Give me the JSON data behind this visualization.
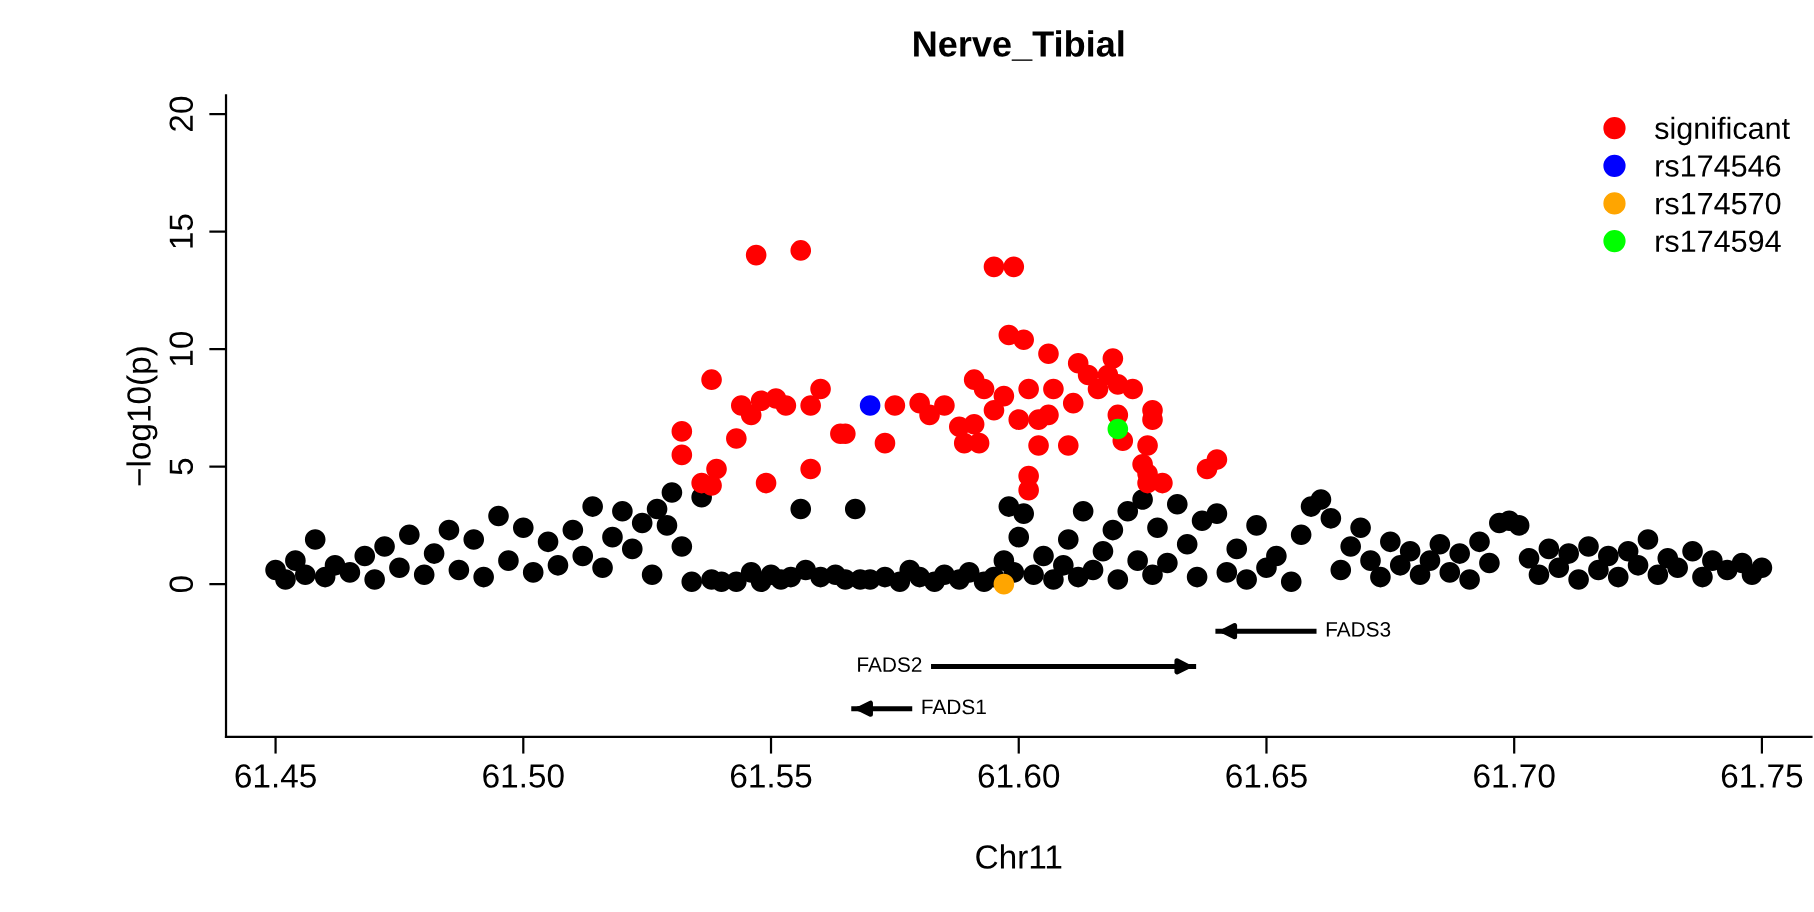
{
  "chart_data": {
    "type": "scatter",
    "title": "Nerve_Tibial",
    "xlabel": "Chr11",
    "ylabel": "−log10(p)",
    "xlim": [
      61.44,
      61.76
    ],
    "xticks": [
      {
        "value": 61.45,
        "label": "61.45"
      },
      {
        "value": 61.5,
        "label": "61.50"
      },
      {
        "value": 61.55,
        "label": "61.55"
      },
      {
        "value": 61.6,
        "label": "61.60"
      },
      {
        "value": 61.65,
        "label": "61.65"
      },
      {
        "value": 61.7,
        "label": "61.70"
      },
      {
        "value": 61.75,
        "label": "61.75"
      }
    ],
    "ylim": [
      -6.5,
      20.8
    ],
    "yticks": [
      0,
      5,
      10,
      15,
      20
    ],
    "grid": false,
    "legend": "top right",
    "marker": "circle",
    "series": [
      {
        "color": "#000000",
        "x": [
          61.45,
          61.452,
          61.454,
          61.456,
          61.458,
          61.46,
          61.462,
          61.465,
          61.468,
          61.47,
          61.472,
          61.475,
          61.477,
          61.48,
          61.482,
          61.485,
          61.487,
          61.49,
          61.492,
          61.495,
          61.497,
          61.5,
          61.502,
          61.505,
          61.507,
          61.51,
          61.512,
          61.514,
          61.516,
          61.518,
          61.52,
          61.522,
          61.524,
          61.526,
          61.527,
          61.529,
          61.53,
          61.532,
          61.534,
          61.536,
          61.538,
          61.54,
          61.543,
          61.546,
          61.548,
          61.55,
          61.552,
          61.554,
          61.556,
          61.557,
          61.56,
          61.563,
          61.565,
          61.567,
          61.568,
          61.57,
          61.573,
          61.576,
          61.578,
          61.58,
          61.583,
          61.585,
          61.588,
          61.59,
          61.593,
          61.595,
          61.597,
          61.598,
          61.599,
          61.6,
          61.601,
          61.603,
          61.605,
          61.607,
          61.609,
          61.61,
          61.612,
          61.613,
          61.615,
          61.617,
          61.619,
          61.62,
          61.622,
          61.624,
          61.625,
          61.627,
          61.628,
          61.63,
          61.632,
          61.634,
          61.636,
          61.637,
          61.64,
          61.642,
          61.644,
          61.646,
          61.648,
          61.65,
          61.652,
          61.655,
          61.657,
          61.659,
          61.661,
          61.663,
          61.665,
          61.667,
          61.669,
          61.671,
          61.673,
          61.675,
          61.677,
          61.679,
          61.681,
          61.683,
          61.685,
          61.687,
          61.689,
          61.691,
          61.693,
          61.695,
          61.697,
          61.699,
          61.701,
          61.703,
          61.705,
          61.707,
          61.709,
          61.711,
          61.713,
          61.715,
          61.717,
          61.719,
          61.721,
          61.723,
          61.725,
          61.727,
          61.729,
          61.731,
          61.733,
          61.736,
          61.738,
          61.74,
          61.743,
          61.746,
          61.748,
          61.75
        ],
        "values": [
          0.6,
          0.2,
          1.0,
          0.4,
          1.9,
          0.3,
          0.8,
          0.5,
          1.2,
          0.2,
          1.6,
          0.7,
          2.1,
          0.4,
          1.3,
          2.3,
          0.6,
          1.9,
          0.3,
          2.9,
          1.0,
          2.4,
          0.5,
          1.8,
          0.8,
          2.3,
          1.2,
          3.3,
          0.7,
          2.0,
          3.1,
          1.5,
          2.6,
          0.4,
          3.2,
          2.5,
          3.9,
          1.6,
          0.1,
          3.7,
          0.2,
          0.1,
          0.1,
          0.5,
          0.1,
          0.4,
          0.2,
          0.3,
          3.2,
          0.6,
          0.3,
          0.4,
          0.2,
          3.2,
          0.2,
          0.2,
          0.3,
          0.1,
          0.6,
          0.3,
          0.1,
          0.4,
          0.2,
          0.5,
          0.1,
          0.3,
          1.0,
          3.3,
          0.5,
          2.0,
          3.0,
          0.4,
          1.2,
          0.2,
          0.8,
          1.9,
          0.3,
          3.1,
          0.6,
          1.4,
          2.3,
          0.2,
          3.1,
          1.0,
          3.6,
          0.4,
          2.4,
          0.9,
          3.4,
          1.7,
          0.3,
          2.7,
          3.0,
          0.5,
          1.5,
          0.2,
          2.5,
          0.7,
          1.2,
          0.1,
          2.1,
          3.3,
          3.6,
          2.8,
          0.6,
          1.6,
          2.4,
          1.0,
          0.3,
          1.8,
          0.8,
          1.4,
          0.4,
          1.0,
          1.7,
          0.5,
          1.3,
          0.2,
          1.8,
          0.9,
          2.6,
          2.7,
          2.5,
          1.1,
          0.4,
          1.5,
          0.7,
          1.3,
          0.2,
          1.6,
          0.6,
          1.2,
          0.3,
          1.4,
          0.8,
          1.9,
          0.4,
          1.1,
          0.7,
          1.4,
          0.3,
          1.0,
          0.6,
          0.9,
          0.4,
          0.7
        ]
      },
      {
        "name": "significant",
        "color": "#ff0000",
        "x": [
          61.547,
          61.556,
          61.595,
          61.599,
          61.598,
          61.601,
          61.606,
          61.612,
          61.619,
          61.618,
          61.614,
          61.616,
          61.62,
          61.623,
          61.538,
          61.56,
          61.544,
          61.548,
          61.551,
          61.553,
          61.558,
          61.546,
          61.575,
          61.58,
          61.582,
          61.585,
          61.591,
          61.593,
          61.597,
          61.602,
          61.607,
          61.611,
          61.604,
          61.606,
          61.6,
          61.595,
          61.591,
          61.588,
          61.592,
          61.589,
          61.604,
          61.61,
          61.62,
          61.621,
          61.627,
          61.627,
          61.626,
          61.625,
          61.626,
          61.626,
          61.629,
          61.638,
          61.64,
          61.532,
          61.543,
          61.564,
          61.565,
          61.573,
          61.532,
          61.539,
          61.536,
          61.538,
          61.549,
          61.558,
          61.602,
          61.602
        ],
        "values": [
          14.0,
          14.2,
          13.5,
          13.5,
          10.6,
          10.4,
          9.8,
          9.4,
          9.6,
          8.9,
          8.9,
          8.3,
          8.5,
          8.3,
          8.7,
          8.3,
          7.6,
          7.8,
          7.9,
          7.6,
          7.6,
          7.2,
          7.6,
          7.7,
          7.2,
          7.6,
          8.7,
          8.3,
          8.0,
          8.3,
          8.3,
          7.7,
          7.0,
          7.2,
          7.0,
          7.4,
          6.8,
          6.7,
          6.0,
          6.0,
          5.9,
          5.9,
          7.2,
          6.1,
          7.4,
          7.0,
          5.9,
          5.1,
          4.7,
          4.3,
          4.3,
          4.9,
          5.3,
          6.5,
          6.2,
          6.4,
          6.4,
          6.0,
          5.5,
          4.9,
          4.3,
          4.2,
          4.3,
          4.9,
          4.6,
          4.0
        ]
      },
      {
        "name": "rs174546",
        "color": "#0000ff",
        "x": [
          61.57
        ],
        "values": [
          7.6
        ]
      },
      {
        "name": "rs174570",
        "color": "#ffa500",
        "x": [
          61.597
        ],
        "values": [
          0.0
        ]
      },
      {
        "name": "rs174594",
        "color": "#00ff00",
        "x": [
          61.62
        ],
        "values": [
          6.6
        ]
      },
      {
        "type": "line",
        "marker": "none",
        "color": "#000000",
        "x": [
          61.6596,
          61.6402
        ],
        "values": [
          -2.0,
          -2.0
        ]
      },
      {
        "type": "line",
        "marker": "none",
        "color": "#000000",
        "x": [
          61.5828,
          61.6353
        ],
        "values": [
          -3.5,
          -3.5
        ]
      },
      {
        "type": "line",
        "marker": "none",
        "color": "#000000",
        "x": [
          61.578,
          61.5667
        ],
        "values": [
          -5.3,
          -5.3
        ]
      }
    ],
    "annotations": [
      {
        "text": "FADS3",
        "x": 61.6596,
        "y": -2.0
      },
      {
        "text": "FADS2",
        "x": 61.5828,
        "y": -3.5
      },
      {
        "text": "FADS1",
        "x": 61.578,
        "y": -5.3
      }
    ]
  }
}
